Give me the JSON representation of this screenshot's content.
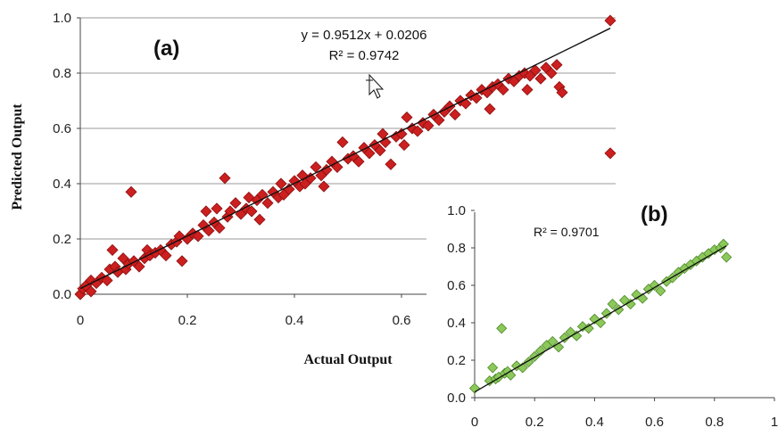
{
  "chart_data": [
    {
      "type": "scatter",
      "panel_label": "(a)",
      "xlabel": "Actual Output",
      "ylabel": "Predicted Output",
      "xlim": [
        0,
        1.0
      ],
      "ylim": [
        0,
        1.0
      ],
      "x_ticks": [
        "0",
        "0.2",
        "0.4",
        "0.6"
      ],
      "y_ticks": [
        "0.0",
        "0.2",
        "0.4",
        "0.6",
        "0.8",
        "1.0"
      ],
      "grid": "horizontal",
      "trendline": {
        "slope": 0.9512,
        "intercept": 0.0206
      },
      "equation_text": "y = 0.9512x + 0.0206",
      "r2_text": "R² = 0.9742",
      "marker_color": "#cc1f1f",
      "points": [
        [
          0.0,
          0.0
        ],
        [
          0.005,
          0.02
        ],
        [
          0.01,
          0.03
        ],
        [
          0.02,
          0.05
        ],
        [
          0.02,
          0.01
        ],
        [
          0.03,
          0.04
        ],
        [
          0.04,
          0.06
        ],
        [
          0.05,
          0.05
        ],
        [
          0.055,
          0.09
        ],
        [
          0.06,
          0.16
        ],
        [
          0.065,
          0.1
        ],
        [
          0.07,
          0.08
        ],
        [
          0.08,
          0.13
        ],
        [
          0.085,
          0.09
        ],
        [
          0.09,
          0.11
        ],
        [
          0.095,
          0.37
        ],
        [
          0.1,
          0.12
        ],
        [
          0.11,
          0.1
        ],
        [
          0.12,
          0.13
        ],
        [
          0.125,
          0.16
        ],
        [
          0.13,
          0.14
        ],
        [
          0.14,
          0.15
        ],
        [
          0.15,
          0.16
        ],
        [
          0.16,
          0.14
        ],
        [
          0.17,
          0.18
        ],
        [
          0.18,
          0.19
        ],
        [
          0.185,
          0.21
        ],
        [
          0.19,
          0.12
        ],
        [
          0.2,
          0.2
        ],
        [
          0.21,
          0.22
        ],
        [
          0.22,
          0.21
        ],
        [
          0.23,
          0.25
        ],
        [
          0.235,
          0.3
        ],
        [
          0.24,
          0.23
        ],
        [
          0.25,
          0.26
        ],
        [
          0.255,
          0.31
        ],
        [
          0.26,
          0.24
        ],
        [
          0.27,
          0.42
        ],
        [
          0.275,
          0.28
        ],
        [
          0.28,
          0.3
        ],
        [
          0.29,
          0.33
        ],
        [
          0.3,
          0.29
        ],
        [
          0.31,
          0.31
        ],
        [
          0.315,
          0.35
        ],
        [
          0.32,
          0.3
        ],
        [
          0.33,
          0.34
        ],
        [
          0.335,
          0.27
        ],
        [
          0.34,
          0.36
        ],
        [
          0.35,
          0.33
        ],
        [
          0.36,
          0.37
        ],
        [
          0.37,
          0.35
        ],
        [
          0.375,
          0.4
        ],
        [
          0.38,
          0.36
        ],
        [
          0.39,
          0.38
        ],
        [
          0.4,
          0.41
        ],
        [
          0.41,
          0.39
        ],
        [
          0.415,
          0.43
        ],
        [
          0.42,
          0.4
        ],
        [
          0.43,
          0.42
        ],
        [
          0.44,
          0.46
        ],
        [
          0.45,
          0.43
        ],
        [
          0.455,
          0.39
        ],
        [
          0.46,
          0.45
        ],
        [
          0.47,
          0.48
        ],
        [
          0.48,
          0.46
        ],
        [
          0.49,
          0.55
        ],
        [
          0.5,
          0.49
        ],
        [
          0.51,
          0.5
        ],
        [
          0.52,
          0.48
        ],
        [
          0.53,
          0.53
        ],
        [
          0.54,
          0.51
        ],
        [
          0.55,
          0.54
        ],
        [
          0.56,
          0.52
        ],
        [
          0.565,
          0.58
        ],
        [
          0.57,
          0.55
        ],
        [
          0.58,
          0.47
        ],
        [
          0.59,
          0.57
        ],
        [
          0.6,
          0.58
        ],
        [
          0.605,
          0.54
        ],
        [
          0.61,
          0.64
        ],
        [
          0.62,
          0.6
        ],
        [
          0.63,
          0.59
        ],
        [
          0.64,
          0.62
        ],
        [
          0.65,
          0.61
        ],
        [
          0.66,
          0.65
        ],
        [
          0.67,
          0.63
        ],
        [
          0.68,
          0.66
        ],
        [
          0.69,
          0.68
        ],
        [
          0.7,
          0.65
        ],
        [
          0.71,
          0.7
        ],
        [
          0.72,
          0.69
        ],
        [
          0.73,
          0.72
        ],
        [
          0.74,
          0.71
        ],
        [
          0.75,
          0.74
        ],
        [
          0.76,
          0.73
        ],
        [
          0.765,
          0.67
        ],
        [
          0.77,
          0.75
        ],
        [
          0.78,
          0.76
        ],
        [
          0.79,
          0.74
        ],
        [
          0.8,
          0.78
        ],
        [
          0.81,
          0.77
        ],
        [
          0.82,
          0.79
        ],
        [
          0.83,
          0.8
        ],
        [
          0.835,
          0.74
        ],
        [
          0.84,
          0.79
        ],
        [
          0.85,
          0.81
        ],
        [
          0.86,
          0.78
        ],
        [
          0.87,
          0.82
        ],
        [
          0.88,
          0.8
        ],
        [
          0.89,
          0.83
        ],
        [
          0.895,
          0.75
        ],
        [
          0.9,
          0.73
        ],
        [
          0.99,
          0.99
        ],
        [
          0.99,
          0.51
        ]
      ]
    },
    {
      "type": "scatter",
      "panel_label": "(b)",
      "xlim": [
        0,
        1
      ],
      "ylim": [
        0,
        1.0
      ],
      "x_ticks": [
        "0",
        "0.2",
        "0.4",
        "0.6",
        "0.8",
        "1"
      ],
      "y_ticks": [
        "0.0",
        "0.2",
        "0.4",
        "0.6",
        "0.8",
        "1.0"
      ],
      "trendline": {
        "slope": 0.93,
        "intercept": 0.03
      },
      "r2_text": "R² = 0.9701",
      "marker_color": "#8cc85a",
      "points": [
        [
          0.0,
          0.05
        ],
        [
          0.05,
          0.09
        ],
        [
          0.06,
          0.16
        ],
        [
          0.07,
          0.1
        ],
        [
          0.08,
          0.11
        ],
        [
          0.09,
          0.37
        ],
        [
          0.1,
          0.13
        ],
        [
          0.11,
          0.14
        ],
        [
          0.12,
          0.12
        ],
        [
          0.14,
          0.17
        ],
        [
          0.16,
          0.16
        ],
        [
          0.18,
          0.19
        ],
        [
          0.2,
          0.22
        ],
        [
          0.22,
          0.25
        ],
        [
          0.24,
          0.28
        ],
        [
          0.26,
          0.3
        ],
        [
          0.28,
          0.27
        ],
        [
          0.3,
          0.32
        ],
        [
          0.32,
          0.35
        ],
        [
          0.34,
          0.33
        ],
        [
          0.36,
          0.38
        ],
        [
          0.38,
          0.37
        ],
        [
          0.4,
          0.42
        ],
        [
          0.42,
          0.4
        ],
        [
          0.44,
          0.45
        ],
        [
          0.46,
          0.5
        ],
        [
          0.48,
          0.47
        ],
        [
          0.5,
          0.52
        ],
        [
          0.52,
          0.5
        ],
        [
          0.54,
          0.55
        ],
        [
          0.56,
          0.53
        ],
        [
          0.58,
          0.58
        ],
        [
          0.6,
          0.6
        ],
        [
          0.62,
          0.57
        ],
        [
          0.64,
          0.62
        ],
        [
          0.66,
          0.64
        ],
        [
          0.68,
          0.67
        ],
        [
          0.7,
          0.69
        ],
        [
          0.72,
          0.71
        ],
        [
          0.74,
          0.73
        ],
        [
          0.76,
          0.75
        ],
        [
          0.78,
          0.77
        ],
        [
          0.8,
          0.79
        ],
        [
          0.82,
          0.8
        ],
        [
          0.83,
          0.82
        ],
        [
          0.84,
          0.75
        ]
      ]
    }
  ]
}
